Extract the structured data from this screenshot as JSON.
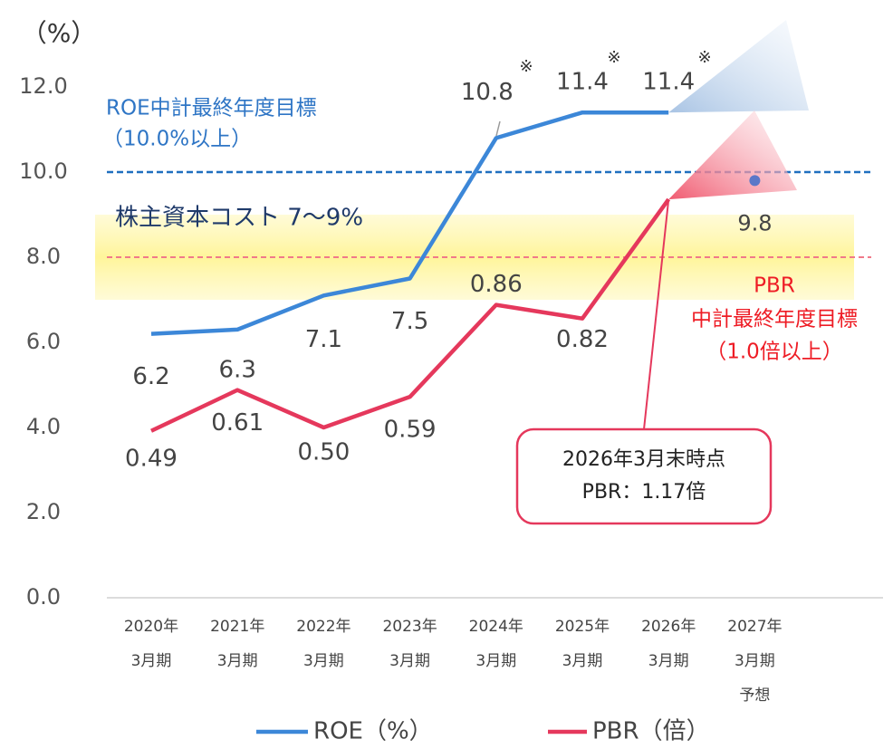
{
  "chart_data": {
    "type": "line",
    "y_unit_label": "（%）",
    "categories": [
      [
        "2020年",
        "3月期"
      ],
      [
        "2021年",
        "3月期"
      ],
      [
        "2022年",
        "3月期"
      ],
      [
        "2023年",
        "3月期"
      ],
      [
        "2024年",
        "3月期"
      ],
      [
        "2025年",
        "3月期"
      ],
      [
        "2026年",
        "3月期"
      ],
      [
        "2027年",
        "3月期",
        "予想"
      ]
    ],
    "ylim": [
      0,
      12
    ],
    "yticks": [
      {
        "value": 0,
        "label": "0.0"
      },
      {
        "value": 2,
        "label": "2.0"
      },
      {
        "value": 4,
        "label": "4.0"
      },
      {
        "value": 6,
        "label": "6.0"
      },
      {
        "value": 8,
        "label": "8.0"
      },
      {
        "value": 10,
        "label": "10.0"
      },
      {
        "value": 12,
        "label": "12.0"
      }
    ],
    "y2lim": [
      0,
      1.5
    ],
    "series": [
      {
        "name": "ROE（%）",
        "color": "#3c87d8",
        "values": [
          6.2,
          6.3,
          7.1,
          7.5,
          10.8,
          11.4,
          11.4,
          null
        ]
      },
      {
        "name": "PBR（倍）",
        "color": "#e5385c",
        "axis": "y2",
        "values": [
          0.49,
          0.61,
          0.5,
          0.59,
          0.86,
          0.82,
          1.17,
          null
        ],
        "value_labels": [
          "0.49",
          "0.61",
          "0.50",
          "0.59",
          "0.86",
          "0.82",
          null,
          null
        ]
      }
    ],
    "roe_forecast": {
      "value": 9.8
    },
    "roe_target": {
      "value": 10.0,
      "label": [
        "ROE中計最終年度目標",
        "（10.0%以上）"
      ]
    },
    "pbr_target": {
      "value": 1.0,
      "label": [
        "PBR",
        "中計最終年度目標",
        "（1.0倍以上）"
      ]
    },
    "cost_of_equity": {
      "range": [
        7,
        9
      ],
      "label": "株主資本コスト 7〜9%"
    },
    "callout": [
      "2026年3月末時点",
      "PBR：1.17倍"
    ],
    "note_mark": "※"
  }
}
